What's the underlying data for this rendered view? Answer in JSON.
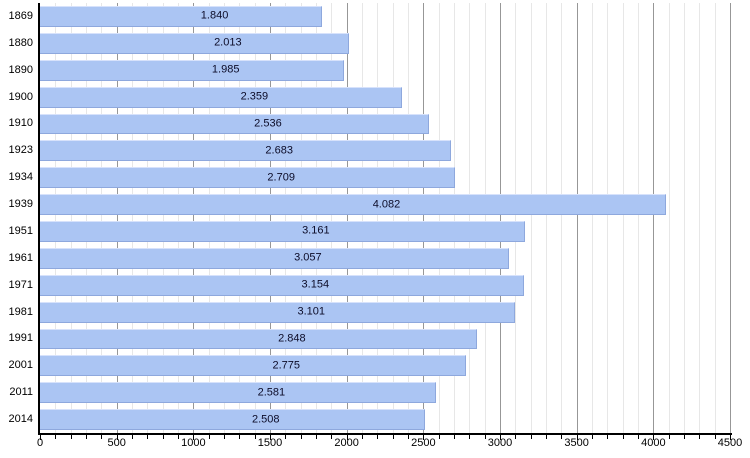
{
  "chart_data": {
    "type": "bar",
    "orientation": "horizontal",
    "title": "",
    "xlabel": "",
    "ylabel": "",
    "categories": [
      "1869",
      "1880",
      "1890",
      "1900",
      "1910",
      "1923",
      "1934",
      "1939",
      "1951",
      "1961",
      "1971",
      "1981",
      "1991",
      "2001",
      "2011",
      "2014"
    ],
    "values": [
      1840,
      2013,
      1985,
      2359,
      2536,
      2683,
      2709,
      4082,
      3161,
      3057,
      3154,
      3101,
      2848,
      2775,
      2581,
      2508
    ],
    "value_labels": [
      "1.840",
      "2.013",
      "1.985",
      "2.359",
      "2.536",
      "2.683",
      "2.709",
      "4.082",
      "3.161",
      "3.057",
      "3.154",
      "3.101",
      "2.848",
      "2.775",
      "2.581",
      "2.508"
    ],
    "xlim": [
      0,
      4500
    ],
    "x_major_tick_step": 500,
    "x_minor_tick_step": 100,
    "x_tick_labels": [
      "0",
      "500",
      "1000",
      "1500",
      "2000",
      "2500",
      "3000",
      "3500",
      "4000",
      "4500"
    ],
    "grid": true,
    "legend": false,
    "colors": {
      "background": "#ffffff",
      "bar_fill": "#abc5f3",
      "bar_edge": "#8ea8dd",
      "bar_highlight": "#d7e2fb",
      "value_text": "#0c0c28",
      "tick_text": "#000000",
      "axis": "#000000",
      "grid_major": "#979797",
      "grid_minor": "#e7e7e7"
    }
  }
}
